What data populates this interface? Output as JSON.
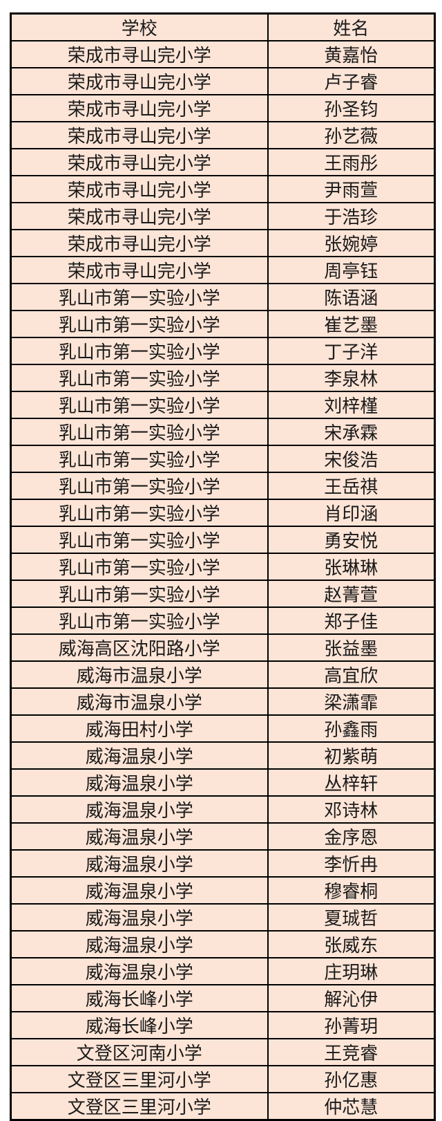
{
  "page": {
    "background_color": "#ffffff"
  },
  "table": {
    "cell_fill_color": "#fce4d6",
    "border_color": "#000000",
    "text_color": "#1a1a1a",
    "headers": [
      {
        "label": "学校"
      },
      {
        "label": "姓名"
      }
    ],
    "rows": [
      {
        "school": "荣成市寻山完小学",
        "name": "黄嘉怡"
      },
      {
        "school": "荣成市寻山完小学",
        "name": "卢子睿"
      },
      {
        "school": "荣成市寻山完小学",
        "name": "孙圣钧"
      },
      {
        "school": "荣成市寻山完小学",
        "name": "孙艺薇"
      },
      {
        "school": "荣成市寻山完小学",
        "name": "王雨彤"
      },
      {
        "school": "荣成市寻山完小学",
        "name": "尹雨萱"
      },
      {
        "school": "荣成市寻山完小学",
        "name": "于浩珍"
      },
      {
        "school": "荣成市寻山完小学",
        "name": "张婉婷"
      },
      {
        "school": "荣成市寻山完小学",
        "name": "周亭钰"
      },
      {
        "school": "乳山市第一实验小学",
        "name": "陈语涵"
      },
      {
        "school": "乳山市第一实验小学",
        "name": "崔艺墨"
      },
      {
        "school": "乳山市第一实验小学",
        "name": "丁子洋"
      },
      {
        "school": "乳山市第一实验小学",
        "name": "李泉林"
      },
      {
        "school": "乳山市第一实验小学",
        "name": "刘梓槿"
      },
      {
        "school": "乳山市第一实验小学",
        "name": "宋承霖"
      },
      {
        "school": "乳山市第一实验小学",
        "name": "宋俊浩"
      },
      {
        "school": "乳山市第一实验小学",
        "name": "王岳祺"
      },
      {
        "school": "乳山市第一实验小学",
        "name": "肖印涵"
      },
      {
        "school": "乳山市第一实验小学",
        "name": "勇安悦"
      },
      {
        "school": "乳山市第一实验小学",
        "name": "张琳琳"
      },
      {
        "school": "乳山市第一实验小学",
        "name": "赵菁萱"
      },
      {
        "school": "乳山市第一实验小学",
        "name": "郑子佳"
      },
      {
        "school": "威海高区沈阳路小学",
        "name": "张益墨"
      },
      {
        "school": "威海市温泉小学",
        "name": "高宜欣"
      },
      {
        "school": "威海市温泉小学",
        "name": "梁潇霏"
      },
      {
        "school": "威海田村小学",
        "name": "孙鑫雨"
      },
      {
        "school": "威海温泉小学",
        "name": "初紫萌"
      },
      {
        "school": "威海温泉小学",
        "name": "丛梓轩"
      },
      {
        "school": "威海温泉小学",
        "name": "邓诗林"
      },
      {
        "school": "威海温泉小学",
        "name": "金序恩"
      },
      {
        "school": "威海温泉小学",
        "name": "李忻冉"
      },
      {
        "school": "威海温泉小学",
        "name": "穆睿桐"
      },
      {
        "school": "威海温泉小学",
        "name": "夏珹哲"
      },
      {
        "school": "威海温泉小学",
        "name": "张威东"
      },
      {
        "school": "威海温泉小学",
        "name": "庄玥琳"
      },
      {
        "school": "威海长峰小学",
        "name": "解沁伊"
      },
      {
        "school": "威海长峰小学",
        "name": "孙菁玥"
      },
      {
        "school": "文登区河南小学",
        "name": "王竞睿"
      },
      {
        "school": "文登区三里河小学",
        "name": "孙亿惠"
      },
      {
        "school": "文登区三里河小学",
        "name": "仲芯慧"
      }
    ]
  }
}
